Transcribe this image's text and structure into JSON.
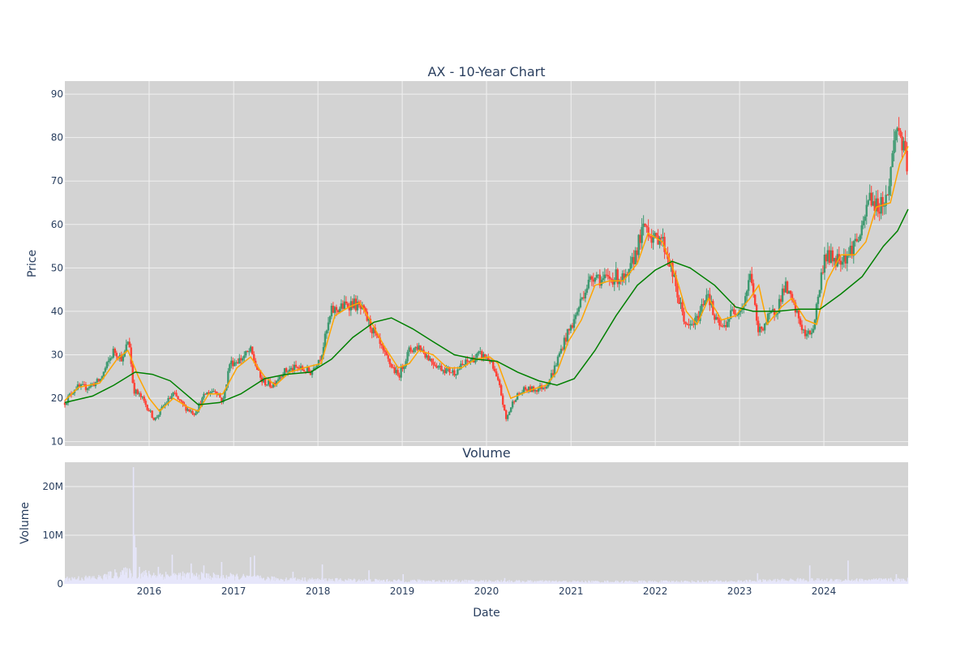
{
  "colors": {
    "plot_bg": "#d3d3d3",
    "grid": "#f0f0f0",
    "up": "#3d9970",
    "down": "#ff4136",
    "ma_short": "#ffa500",
    "ma_long": "#008000",
    "volume": "#e6e6fa"
  },
  "chart_data": [
    {
      "type": "candlestick",
      "title": "AX - 10-Year Chart",
      "xlabel": "",
      "ylabel": "Price",
      "xlim": [
        "2015-01-01",
        "2024-12-31"
      ],
      "ylim": [
        9,
        93
      ],
      "yticks": [
        10,
        20,
        30,
        40,
        50,
        60,
        70,
        80,
        90
      ],
      "xticks": [
        "2016",
        "2017",
        "2018",
        "2019",
        "2020",
        "2021",
        "2022",
        "2023",
        "2024"
      ],
      "grid": true,
      "price_path": [
        [
          "2015-01-01",
          19
        ],
        [
          "2015-02-15",
          22.5
        ],
        [
          "2015-04-01",
          22.5
        ],
        [
          "2015-06-01",
          24
        ],
        [
          "2015-08-01",
          31
        ],
        [
          "2015-09-10",
          29
        ],
        [
          "2015-10-05",
          34
        ],
        [
          "2015-10-25",
          22
        ],
        [
          "2015-12-01",
          20
        ],
        [
          "2016-01-25",
          15
        ],
        [
          "2016-03-01",
          18
        ],
        [
          "2016-04-15",
          21
        ],
        [
          "2016-06-01",
          18
        ],
        [
          "2016-07-15",
          16.5
        ],
        [
          "2016-09-01",
          21
        ],
        [
          "2016-10-15",
          22
        ],
        [
          "2016-11-15",
          19
        ],
        [
          "2016-12-15",
          28
        ],
        [
          "2017-02-01",
          29
        ],
        [
          "2017-03-15",
          31
        ],
        [
          "2017-05-01",
          24
        ],
        [
          "2017-06-15",
          23
        ],
        [
          "2017-08-01",
          26
        ],
        [
          "2017-10-01",
          27
        ],
        [
          "2017-12-01",
          26
        ],
        [
          "2018-01-15",
          30
        ],
        [
          "2018-03-01",
          40
        ],
        [
          "2018-04-15",
          41
        ],
        [
          "2018-06-01",
          42
        ],
        [
          "2018-07-15",
          40
        ],
        [
          "2018-09-01",
          35
        ],
        [
          "2018-10-15",
          30
        ],
        [
          "2018-12-15",
          25
        ],
        [
          "2019-02-01",
          31
        ],
        [
          "2019-03-15",
          32
        ],
        [
          "2019-05-01",
          29
        ],
        [
          "2019-06-15",
          27
        ],
        [
          "2019-08-15",
          26
        ],
        [
          "2019-10-01",
          28
        ],
        [
          "2019-12-01",
          30
        ],
        [
          "2020-01-15",
          29
        ],
        [
          "2020-03-01",
          22
        ],
        [
          "2020-03-25",
          15
        ],
        [
          "2020-05-01",
          20
        ],
        [
          "2020-06-15",
          22
        ],
        [
          "2020-08-01",
          22
        ],
        [
          "2020-09-15",
          23
        ],
        [
          "2020-10-15",
          26
        ],
        [
          "2020-12-01",
          33
        ],
        [
          "2021-01-15",
          38
        ],
        [
          "2021-03-01",
          45
        ],
        [
          "2021-04-15",
          49
        ],
        [
          "2021-05-15",
          47
        ],
        [
          "2021-07-15",
          48
        ],
        [
          "2021-09-01",
          47
        ],
        [
          "2021-10-15",
          55
        ],
        [
          "2021-11-20",
          60
        ],
        [
          "2022-01-01",
          56
        ],
        [
          "2022-01-20",
          58
        ],
        [
          "2022-03-01",
          52
        ],
        [
          "2022-04-15",
          42
        ],
        [
          "2022-05-20",
          36
        ],
        [
          "2022-07-01",
          38
        ],
        [
          "2022-08-15",
          45
        ],
        [
          "2022-09-15",
          38
        ],
        [
          "2022-10-20",
          36
        ],
        [
          "2022-12-01",
          40
        ],
        [
          "2023-01-15",
          41
        ],
        [
          "2023-02-20",
          49
        ],
        [
          "2023-03-20",
          35
        ],
        [
          "2023-05-01",
          38
        ],
        [
          "2023-06-15",
          41
        ],
        [
          "2023-07-15",
          46
        ],
        [
          "2023-09-01",
          40
        ],
        [
          "2023-10-15",
          34
        ],
        [
          "2023-11-15",
          36
        ],
        [
          "2024-01-05",
          53
        ],
        [
          "2024-02-15",
          52
        ],
        [
          "2024-04-15",
          53
        ],
        [
          "2024-05-15",
          56
        ],
        [
          "2024-06-15",
          58
        ],
        [
          "2024-07-15",
          67
        ],
        [
          "2024-08-15",
          64
        ],
        [
          "2024-10-01",
          66
        ],
        [
          "2024-11-10",
          83
        ],
        [
          "2024-12-01",
          80
        ],
        [
          "2024-12-31",
          71
        ]
      ],
      "series": [
        {
          "type": "line",
          "color": "#ffa500",
          "values": [
            [
              "2015-01-01",
              19.5
            ],
            [
              "2015-03-01",
              22.5
            ],
            [
              "2015-06-01",
              23.5
            ],
            [
              "2015-08-15",
              29
            ],
            [
              "2015-10-01",
              31
            ],
            [
              "2015-11-15",
              25
            ],
            [
              "2016-01-01",
              20
            ],
            [
              "2016-02-15",
              17
            ],
            [
              "2016-04-15",
              20
            ],
            [
              "2016-06-15",
              18
            ],
            [
              "2016-08-01",
              17
            ],
            [
              "2016-09-15",
              21
            ],
            [
              "2016-11-15",
              21
            ],
            [
              "2017-01-15",
              27
            ],
            [
              "2017-03-15",
              29.5
            ],
            [
              "2017-05-15",
              25
            ],
            [
              "2017-07-01",
              23
            ],
            [
              "2017-09-01",
              26
            ],
            [
              "2017-11-01",
              27
            ],
            [
              "2018-01-15",
              28
            ],
            [
              "2018-03-15",
              39
            ],
            [
              "2018-05-15",
              41
            ],
            [
              "2018-07-01",
              42
            ],
            [
              "2018-08-15",
              38
            ],
            [
              "2018-10-15",
              32
            ],
            [
              "2018-12-15",
              27
            ],
            [
              "2019-02-01",
              28
            ],
            [
              "2019-03-15",
              31
            ],
            [
              "2019-05-15",
              30
            ],
            [
              "2019-07-15",
              27
            ],
            [
              "2019-09-15",
              27
            ],
            [
              "2019-11-15",
              29
            ],
            [
              "2020-01-15",
              29.5
            ],
            [
              "2020-02-20",
              28
            ],
            [
              "2020-04-15",
              20
            ],
            [
              "2020-06-01",
              21
            ],
            [
              "2020-07-15",
              22
            ],
            [
              "2020-09-15",
              23
            ],
            [
              "2020-11-01",
              26
            ],
            [
              "2020-12-20",
              33
            ],
            [
              "2021-02-15",
              38
            ],
            [
              "2021-04-15",
              46
            ],
            [
              "2021-06-15",
              47
            ],
            [
              "2021-08-15",
              47
            ],
            [
              "2021-10-15",
              51
            ],
            [
              "2021-12-01",
              58
            ],
            [
              "2022-02-01",
              56
            ],
            [
              "2022-04-01",
              48
            ],
            [
              "2022-05-15",
              40
            ],
            [
              "2022-07-01",
              37
            ],
            [
              "2022-08-20",
              43
            ],
            [
              "2022-10-15",
              38
            ],
            [
              "2022-12-15",
              39
            ],
            [
              "2023-02-15",
              43
            ],
            [
              "2023-03-25",
              46
            ],
            [
              "2023-05-01",
              37
            ],
            [
              "2023-07-01",
              41
            ],
            [
              "2023-08-15",
              43
            ],
            [
              "2023-10-15",
              38
            ],
            [
              "2023-12-01",
              37
            ],
            [
              "2024-01-15",
              47
            ],
            [
              "2024-03-15",
              53
            ],
            [
              "2024-05-15",
              53
            ],
            [
              "2024-07-01",
              56
            ],
            [
              "2024-08-15",
              64
            ],
            [
              "2024-10-15",
              65
            ],
            [
              "2024-11-25",
              74
            ],
            [
              "2024-12-31",
              78
            ]
          ]
        },
        {
          "type": "line",
          "color": "#008000",
          "values": [
            [
              "2015-01-01",
              19
            ],
            [
              "2015-05-01",
              20.5
            ],
            [
              "2015-08-01",
              23
            ],
            [
              "2015-11-01",
              26
            ],
            [
              "2016-01-15",
              25.5
            ],
            [
              "2016-04-01",
              24
            ],
            [
              "2016-08-01",
              18.5
            ],
            [
              "2016-11-01",
              19
            ],
            [
              "2017-02-01",
              21
            ],
            [
              "2017-05-15",
              24.5
            ],
            [
              "2017-08-15",
              25.5
            ],
            [
              "2017-12-01",
              26
            ],
            [
              "2018-03-01",
              29
            ],
            [
              "2018-06-01",
              34
            ],
            [
              "2018-09-01",
              37.5
            ],
            [
              "2018-11-15",
              38.5
            ],
            [
              "2019-02-15",
              36
            ],
            [
              "2019-05-15",
              33
            ],
            [
              "2019-08-15",
              30
            ],
            [
              "2019-11-15",
              29
            ],
            [
              "2020-02-15",
              28.5
            ],
            [
              "2020-05-15",
              26
            ],
            [
              "2020-08-15",
              24
            ],
            [
              "2020-11-01",
              23
            ],
            [
              "2021-01-15",
              24.5
            ],
            [
              "2021-04-15",
              31
            ],
            [
              "2021-07-15",
              39
            ],
            [
              "2021-10-15",
              46
            ],
            [
              "2022-01-01",
              49.5
            ],
            [
              "2022-03-15",
              51.5
            ],
            [
              "2022-06-01",
              50
            ],
            [
              "2022-09-15",
              46
            ],
            [
              "2022-12-15",
              41
            ],
            [
              "2023-03-01",
              40
            ],
            [
              "2023-06-15",
              40
            ],
            [
              "2023-09-15",
              40.5
            ],
            [
              "2023-12-15",
              40.5
            ],
            [
              "2024-03-15",
              44
            ],
            [
              "2024-06-15",
              48
            ],
            [
              "2024-09-15",
              55
            ],
            [
              "2024-11-15",
              58.5
            ],
            [
              "2024-12-31",
              63.5
            ]
          ]
        }
      ]
    },
    {
      "type": "bar",
      "title": "Volume",
      "xlabel": "Date",
      "ylabel": "Volume",
      "ylim": [
        0,
        25000000
      ],
      "yticks": [
        {
          "value": 0,
          "label": "0"
        },
        {
          "value": 10000000,
          "label": "10M"
        },
        {
          "value": 20000000,
          "label": "20M"
        }
      ],
      "xticks": [
        "2016",
        "2017",
        "2018",
        "2019",
        "2020",
        "2021",
        "2022",
        "2023",
        "2024"
      ],
      "grid": true,
      "baseline_level": [
        [
          "2015-01-01",
          1000000
        ],
        [
          "2015-06-01",
          1200000
        ],
        [
          "2015-09-01",
          2200000
        ],
        [
          "2016-01-01",
          1800000
        ],
        [
          "2016-06-01",
          1600000
        ],
        [
          "2017-01-01",
          1400000
        ],
        [
          "2017-06-01",
          1000000
        ],
        [
          "2018-01-01",
          800000
        ],
        [
          "2019-01-01",
          600000
        ],
        [
          "2020-01-01",
          550000
        ],
        [
          "2021-01-01",
          450000
        ],
        [
          "2022-01-01",
          450000
        ],
        [
          "2023-01-01",
          500000
        ],
        [
          "2023-10-01",
          800000
        ],
        [
          "2024-01-01",
          700000
        ],
        [
          "2024-12-31",
          800000
        ]
      ],
      "spikes": [
        [
          "2015-10-25",
          24000000
        ],
        [
          "2015-10-30",
          10000000
        ],
        [
          "2015-11-05",
          7500000
        ],
        [
          "2015-11-20",
          3500000
        ],
        [
          "2016-02-10",
          3500000
        ],
        [
          "2016-04-10",
          6000000
        ],
        [
          "2016-07-01",
          4200000
        ],
        [
          "2016-08-25",
          3800000
        ],
        [
          "2016-11-10",
          4500000
        ],
        [
          "2017-03-15",
          5500000
        ],
        [
          "2017-04-01",
          5800000
        ],
        [
          "2017-09-15",
          2500000
        ],
        [
          "2018-01-20",
          4000000
        ],
        [
          "2018-08-10",
          2800000
        ],
        [
          "2019-01-05",
          2000000
        ],
        [
          "2020-03-20",
          1200000
        ],
        [
          "2023-03-20",
          2200000
        ],
        [
          "2023-11-01",
          3800000
        ],
        [
          "2024-04-15",
          4800000
        ],
        [
          "2024-11-10",
          2000000
        ]
      ]
    }
  ]
}
